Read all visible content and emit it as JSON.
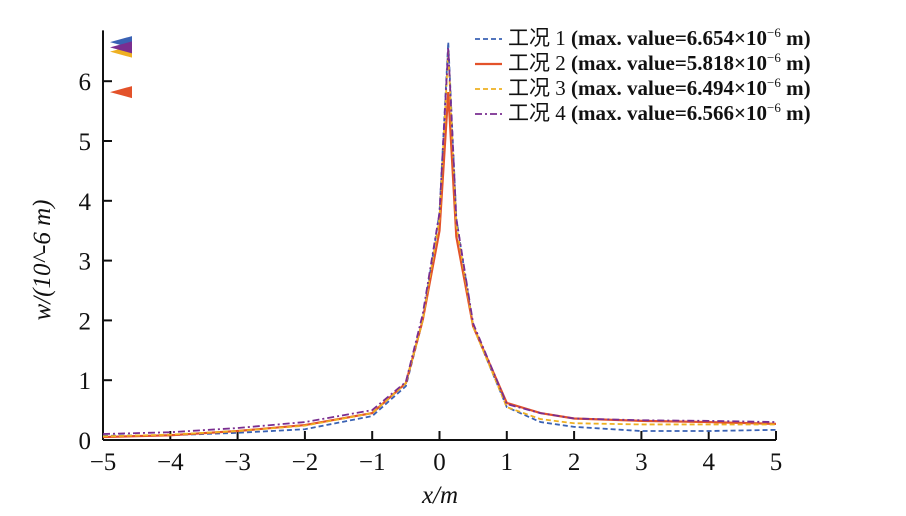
{
  "chart_data": {
    "type": "line",
    "title": "",
    "xlabel": "x/m",
    "ylabel": "w/(10^-6 m)",
    "xlim": [
      -5,
      5
    ],
    "ylim": [
      0,
      6.8
    ],
    "xticks": [
      "-5",
      "-4",
      "-3",
      "-2",
      "-1",
      "0",
      "1",
      "2",
      "3",
      "4",
      "5"
    ],
    "yticks": [
      "0",
      "1",
      "2",
      "3",
      "4",
      "5",
      "6"
    ],
    "grid": false,
    "legend_position": "top-right",
    "x": [
      -5,
      -4,
      -3,
      -2,
      -1,
      -0.5,
      -0.25,
      0,
      0.13,
      0.25,
      0.5,
      1,
      1.5,
      2,
      3,
      4,
      5
    ],
    "series": [
      {
        "name": "工况 1 (max. value=6.654×10⁻⁶ m)",
        "label": "工况 1",
        "max_text": "(max. value=6.654×10",
        "exp": "−6",
        "unit": " m)",
        "max": 6.654,
        "color": "#3a62b4",
        "style": "dashed",
        "values": [
          0.07,
          0.08,
          0.12,
          0.18,
          0.4,
          0.9,
          2.0,
          3.8,
          6.654,
          3.7,
          1.9,
          0.55,
          0.3,
          0.22,
          0.15,
          0.15,
          0.17
        ]
      },
      {
        "name": "工况 2 (max. value=5.818×10⁻⁶ m)",
        "label": "工况 2",
        "max_text": "(max. value=5.818×10",
        "exp": "−6",
        "unit": " m)",
        "max": 5.818,
        "color": "#e3522a",
        "style": "solid",
        "values": [
          0.05,
          0.08,
          0.15,
          0.25,
          0.45,
          0.95,
          2.0,
          3.5,
          5.818,
          3.4,
          1.9,
          0.62,
          0.45,
          0.36,
          0.32,
          0.3,
          0.27
        ]
      },
      {
        "name": "工况 3 (max. value=6.494×10⁻⁶ m)",
        "label": "工况 3",
        "max_text": "(max. value=6.494×10",
        "exp": "−6",
        "unit": " m)",
        "max": 6.494,
        "color": "#eeb022",
        "style": "dashed",
        "values": [
          0.06,
          0.09,
          0.15,
          0.24,
          0.45,
          0.95,
          2.0,
          3.7,
          6.494,
          3.6,
          1.9,
          0.55,
          0.35,
          0.28,
          0.26,
          0.26,
          0.26
        ]
      },
      {
        "name": "工况 4 (max. value=6.566×10⁻⁶ m)",
        "label": "工况 4",
        "max_text": "(max. value=6.566×10",
        "exp": "−6",
        "unit": " m)",
        "max": 6.566,
        "color": "#7a2e90",
        "style": "dashdot",
        "values": [
          0.1,
          0.13,
          0.2,
          0.3,
          0.5,
          0.97,
          2.1,
          3.8,
          6.566,
          3.7,
          1.95,
          0.6,
          0.45,
          0.36,
          0.33,
          0.32,
          0.3
        ]
      }
    ]
  }
}
